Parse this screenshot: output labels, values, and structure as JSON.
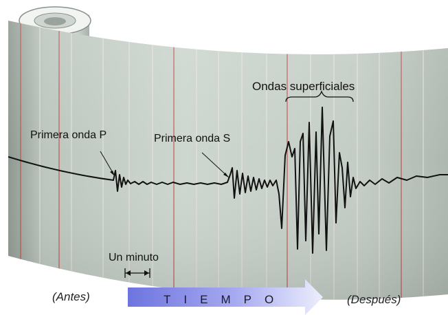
{
  "labels": {
    "first_p_wave": "Primera onda P",
    "first_s_wave": "Primera onda S",
    "surface_waves": "Ondas superficiales",
    "one_minute": "Un minuto",
    "before": "(Antes)",
    "after": "(Después)",
    "time": "TIEMPO"
  },
  "colors": {
    "paper": "#c9d2cb",
    "trace": "#111111",
    "grid_red": "#c2453a",
    "grid_pale": "#ece6dc",
    "arrow_dark": "#7b80e4",
    "arrow_light": "#e6e8fb"
  }
}
